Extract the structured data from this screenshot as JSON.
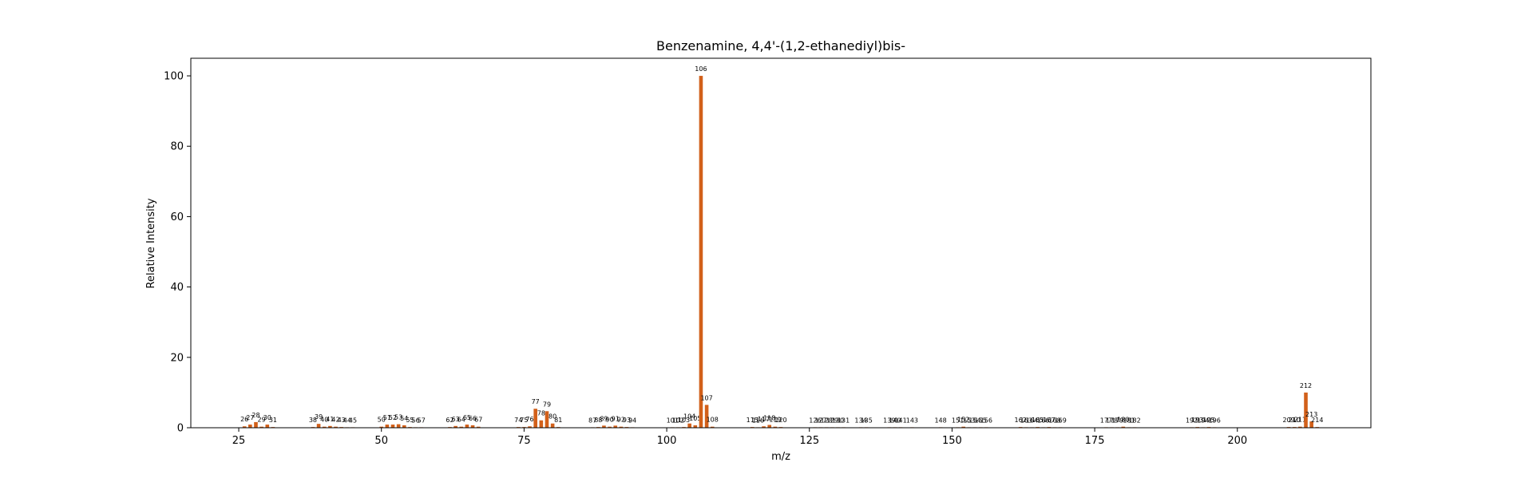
{
  "chart_data": {
    "type": "bar",
    "title": "Benzenamine, 4,4'-(1,2-ethanediyl)bis-",
    "xlabel": "m/z",
    "ylabel": "Relative Intensity",
    "xlim": [
      16.6,
      223.4
    ],
    "ylim": [
      0,
      105
    ],
    "xticks": [
      25,
      50,
      75,
      100,
      125,
      150,
      175,
      200
    ],
    "yticks": [
      0,
      20,
      40,
      60,
      80,
      100
    ],
    "bar_color": "#d2601a",
    "grid": false,
    "legend": "none",
    "peaks": [
      {
        "mz": 26,
        "intensity": 0.4
      },
      {
        "mz": 27,
        "intensity": 0.9
      },
      {
        "mz": 28,
        "intensity": 1.6
      },
      {
        "mz": 29,
        "intensity": 0.3
      },
      {
        "mz": 30,
        "intensity": 0.9
      },
      {
        "mz": 31,
        "intensity": 0.2
      },
      {
        "mz": 38,
        "intensity": 0.2
      },
      {
        "mz": 39,
        "intensity": 1.1
      },
      {
        "mz": 40,
        "intensity": 0.3
      },
      {
        "mz": 41,
        "intensity": 0.5
      },
      {
        "mz": 42,
        "intensity": 0.3
      },
      {
        "mz": 43,
        "intensity": 0.2
      },
      {
        "mz": 44,
        "intensity": 0.1
      },
      {
        "mz": 45,
        "intensity": 0.1
      },
      {
        "mz": 50,
        "intensity": 0.3
      },
      {
        "mz": 51,
        "intensity": 0.9
      },
      {
        "mz": 52,
        "intensity": 0.9
      },
      {
        "mz": 53,
        "intensity": 1.0
      },
      {
        "mz": 54,
        "intensity": 0.7
      },
      {
        "mz": 55,
        "intensity": 0.2
      },
      {
        "mz": 56,
        "intensity": 0.1
      },
      {
        "mz": 57,
        "intensity": 0.1
      },
      {
        "mz": 62,
        "intensity": 0.2
      },
      {
        "mz": 63,
        "intensity": 0.5
      },
      {
        "mz": 64,
        "intensity": 0.3
      },
      {
        "mz": 65,
        "intensity": 0.9
      },
      {
        "mz": 66,
        "intensity": 0.7
      },
      {
        "mz": 67,
        "intensity": 0.3
      },
      {
        "mz": 74,
        "intensity": 0.2
      },
      {
        "mz": 75,
        "intensity": 0.2
      },
      {
        "mz": 76,
        "intensity": 0.4
      },
      {
        "mz": 77,
        "intensity": 5.4
      },
      {
        "mz": 78,
        "intensity": 2.1
      },
      {
        "mz": 79,
        "intensity": 4.7
      },
      {
        "mz": 80,
        "intensity": 1.2
      },
      {
        "mz": 81,
        "intensity": 0.2
      },
      {
        "mz": 87,
        "intensity": 0.1
      },
      {
        "mz": 88,
        "intensity": 0.2
      },
      {
        "mz": 89,
        "intensity": 0.6
      },
      {
        "mz": 90,
        "intensity": 0.3
      },
      {
        "mz": 91,
        "intensity": 0.6
      },
      {
        "mz": 92,
        "intensity": 0.3
      },
      {
        "mz": 93,
        "intensity": 0.2
      },
      {
        "mz": 94,
        "intensity": 0.1
      },
      {
        "mz": 101,
        "intensity": 0.1
      },
      {
        "mz": 102,
        "intensity": 0.1
      },
      {
        "mz": 103,
        "intensity": 0.2
      },
      {
        "mz": 104,
        "intensity": 1.2
      },
      {
        "mz": 105,
        "intensity": 0.7
      },
      {
        "mz": 106,
        "intensity": 100
      },
      {
        "mz": 107,
        "intensity": 6.5
      },
      {
        "mz": 108,
        "intensity": 0.3
      },
      {
        "mz": 115,
        "intensity": 0.2
      },
      {
        "mz": 116,
        "intensity": 0.1
      },
      {
        "mz": 117,
        "intensity": 0.4
      },
      {
        "mz": 118,
        "intensity": 0.8
      },
      {
        "mz": 119,
        "intensity": 0.3
      },
      {
        "mz": 120,
        "intensity": 0.2
      },
      {
        "mz": 126,
        "intensity": 0.1
      },
      {
        "mz": 127,
        "intensity": 0.1
      },
      {
        "mz": 128,
        "intensity": 0.1
      },
      {
        "mz": 129,
        "intensity": 0.1
      },
      {
        "mz": 130,
        "intensity": 0.1
      },
      {
        "mz": 131,
        "intensity": 0.1
      },
      {
        "mz": 134,
        "intensity": 0.1
      },
      {
        "mz": 135,
        "intensity": 0.1
      },
      {
        "mz": 139,
        "intensity": 0.1
      },
      {
        "mz": 140,
        "intensity": 0.1
      },
      {
        "mz": 141,
        "intensity": 0.1
      },
      {
        "mz": 143,
        "intensity": 0.1
      },
      {
        "mz": 148,
        "intensity": 0.1
      },
      {
        "mz": 151,
        "intensity": 0.1
      },
      {
        "mz": 152,
        "intensity": 0.3
      },
      {
        "mz": 153,
        "intensity": 0.1
      },
      {
        "mz": 154,
        "intensity": 0.1
      },
      {
        "mz": 155,
        "intensity": 0.1
      },
      {
        "mz": 156,
        "intensity": 0.1
      },
      {
        "mz": 162,
        "intensity": 0.2
      },
      {
        "mz": 163,
        "intensity": 0.1
      },
      {
        "mz": 164,
        "intensity": 0.1
      },
      {
        "mz": 165,
        "intensity": 0.2
      },
      {
        "mz": 166,
        "intensity": 0.1
      },
      {
        "mz": 167,
        "intensity": 0.2
      },
      {
        "mz": 168,
        "intensity": 0.1
      },
      {
        "mz": 169,
        "intensity": 0.1
      },
      {
        "mz": 177,
        "intensity": 0.1
      },
      {
        "mz": 178,
        "intensity": 0.1
      },
      {
        "mz": 179,
        "intensity": 0.1
      },
      {
        "mz": 180,
        "intensity": 0.3
      },
      {
        "mz": 181,
        "intensity": 0.1
      },
      {
        "mz": 182,
        "intensity": 0.1
      },
      {
        "mz": 192,
        "intensity": 0.1
      },
      {
        "mz": 193,
        "intensity": 0.2
      },
      {
        "mz": 194,
        "intensity": 0.1
      },
      {
        "mz": 195,
        "intensity": 0.2
      },
      {
        "mz": 196,
        "intensity": 0.1
      },
      {
        "mz": 209,
        "intensity": 0.2
      },
      {
        "mz": 210,
        "intensity": 0.2
      },
      {
        "mz": 211,
        "intensity": 0.3
      },
      {
        "mz": 212,
        "intensity": 10.0
      },
      {
        "mz": 213,
        "intensity": 1.8
      },
      {
        "mz": 214,
        "intensity": 0.2
      }
    ]
  }
}
